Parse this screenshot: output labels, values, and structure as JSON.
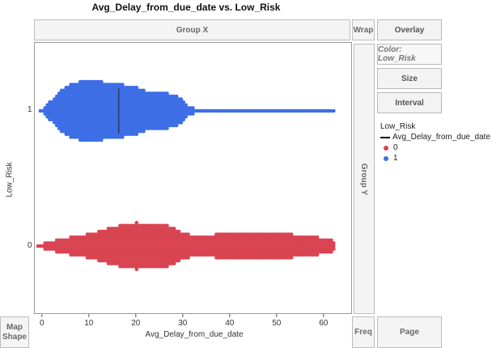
{
  "title": "Avg_Delay_from_due_date vs. Low_Risk",
  "zones": {
    "group_x": "Group X",
    "group_y": "Group Y",
    "wrap": "Wrap",
    "freq": "Freq",
    "page": "Page",
    "map_shape_line1": "Map",
    "map_shape_line2": "Shape"
  },
  "buttons": {
    "overlay": "Overlay",
    "color": "Color: Low_Risk",
    "size": "Size",
    "interval": "Interval"
  },
  "legend": {
    "title": "Low_Risk",
    "line_label": "Avg_Delay_from_due_date",
    "items": [
      {
        "label": "0",
        "color": "#d94452"
      },
      {
        "label": "1",
        "color": "#3d6ee6"
      }
    ]
  },
  "chart_data": {
    "type": "scatter",
    "xlabel": "Avg_Delay_from_due_date",
    "ylabel": "Low_Risk",
    "xlim": [
      -1,
      64
    ],
    "x_ticks": [
      0,
      10,
      20,
      30,
      40,
      50,
      60
    ],
    "y_categories": [
      "0",
      "1"
    ],
    "series": [
      {
        "name": "1",
        "color": "#3d6ee6",
        "x_range": [
          -1,
          62
        ],
        "profile": [
          [
            -1,
            0
          ],
          [
            0,
            3
          ],
          [
            2,
            14
          ],
          [
            4,
            26
          ],
          [
            6,
            33
          ],
          [
            8,
            37
          ],
          [
            10,
            38
          ],
          [
            12,
            37
          ],
          [
            14,
            35
          ],
          [
            16,
            33
          ],
          [
            18,
            32
          ],
          [
            20,
            30
          ],
          [
            22,
            25
          ],
          [
            24,
            22
          ],
          [
            26,
            23
          ],
          [
            28,
            20
          ],
          [
            30,
            13
          ],
          [
            31,
            7
          ],
          [
            32,
            4
          ],
          [
            34,
            2
          ],
          [
            40,
            2
          ],
          [
            50,
            2
          ],
          [
            62,
            2
          ]
        ]
      },
      {
        "name": "0",
        "color": "#d94452",
        "x_range": [
          -1,
          62
        ],
        "profile": [
          [
            -1,
            2
          ],
          [
            2,
            6
          ],
          [
            6,
            11
          ],
          [
            10,
            15
          ],
          [
            14,
            22
          ],
          [
            18,
            28
          ],
          [
            20,
            29
          ],
          [
            22,
            28
          ],
          [
            24,
            27
          ],
          [
            26,
            27
          ],
          [
            28,
            23
          ],
          [
            30,
            16
          ],
          [
            32,
            13
          ],
          [
            36,
            14
          ],
          [
            40,
            16
          ],
          [
            44,
            17
          ],
          [
            48,
            16
          ],
          [
            52,
            15
          ],
          [
            56,
            13
          ],
          [
            60,
            10
          ],
          [
            62,
            7
          ]
        ]
      }
    ]
  }
}
